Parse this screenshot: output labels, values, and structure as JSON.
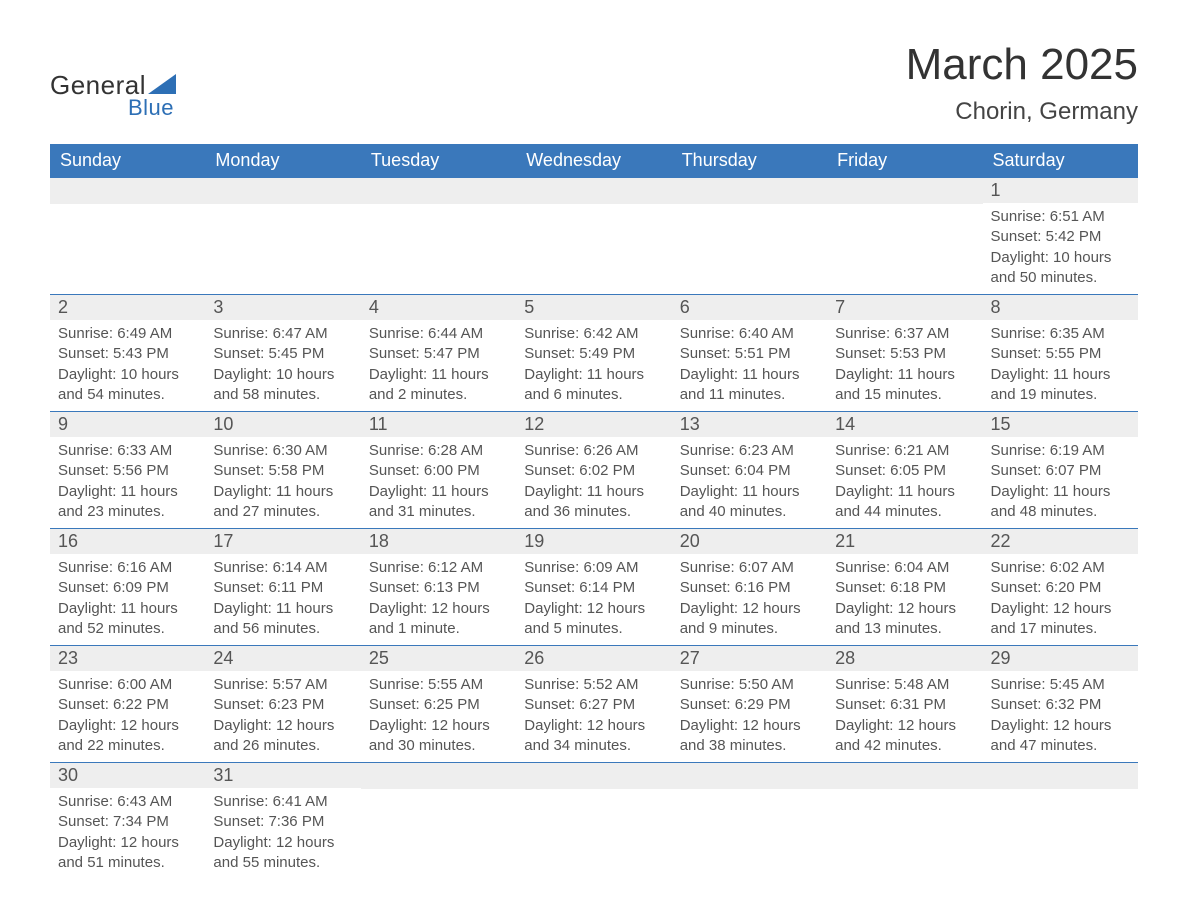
{
  "brand": {
    "general": "General",
    "blue": "Blue"
  },
  "title": "March 2025",
  "subtitle": "Chorin, Germany",
  "colors": {
    "header_bg": "#3a78bb",
    "header_text": "#ffffff",
    "daynum_bg": "#eeeeee",
    "text": "#555555",
    "logo_blue": "#2d6fb5"
  },
  "weekdays": [
    "Sunday",
    "Monday",
    "Tuesday",
    "Wednesday",
    "Thursday",
    "Friday",
    "Saturday"
  ],
  "leading_blanks": 6,
  "days": [
    {
      "n": "1",
      "sunrise": "Sunrise: 6:51 AM",
      "sunset": "Sunset: 5:42 PM",
      "day1": "Daylight: 10 hours",
      "day2": "and 50 minutes."
    },
    {
      "n": "2",
      "sunrise": "Sunrise: 6:49 AM",
      "sunset": "Sunset: 5:43 PM",
      "day1": "Daylight: 10 hours",
      "day2": "and 54 minutes."
    },
    {
      "n": "3",
      "sunrise": "Sunrise: 6:47 AM",
      "sunset": "Sunset: 5:45 PM",
      "day1": "Daylight: 10 hours",
      "day2": "and 58 minutes."
    },
    {
      "n": "4",
      "sunrise": "Sunrise: 6:44 AM",
      "sunset": "Sunset: 5:47 PM",
      "day1": "Daylight: 11 hours",
      "day2": "and 2 minutes."
    },
    {
      "n": "5",
      "sunrise": "Sunrise: 6:42 AM",
      "sunset": "Sunset: 5:49 PM",
      "day1": "Daylight: 11 hours",
      "day2": "and 6 minutes."
    },
    {
      "n": "6",
      "sunrise": "Sunrise: 6:40 AM",
      "sunset": "Sunset: 5:51 PM",
      "day1": "Daylight: 11 hours",
      "day2": "and 11 minutes."
    },
    {
      "n": "7",
      "sunrise": "Sunrise: 6:37 AM",
      "sunset": "Sunset: 5:53 PM",
      "day1": "Daylight: 11 hours",
      "day2": "and 15 minutes."
    },
    {
      "n": "8",
      "sunrise": "Sunrise: 6:35 AM",
      "sunset": "Sunset: 5:55 PM",
      "day1": "Daylight: 11 hours",
      "day2": "and 19 minutes."
    },
    {
      "n": "9",
      "sunrise": "Sunrise: 6:33 AM",
      "sunset": "Sunset: 5:56 PM",
      "day1": "Daylight: 11 hours",
      "day2": "and 23 minutes."
    },
    {
      "n": "10",
      "sunrise": "Sunrise: 6:30 AM",
      "sunset": "Sunset: 5:58 PM",
      "day1": "Daylight: 11 hours",
      "day2": "and 27 minutes."
    },
    {
      "n": "11",
      "sunrise": "Sunrise: 6:28 AM",
      "sunset": "Sunset: 6:00 PM",
      "day1": "Daylight: 11 hours",
      "day2": "and 31 minutes."
    },
    {
      "n": "12",
      "sunrise": "Sunrise: 6:26 AM",
      "sunset": "Sunset: 6:02 PM",
      "day1": "Daylight: 11 hours",
      "day2": "and 36 minutes."
    },
    {
      "n": "13",
      "sunrise": "Sunrise: 6:23 AM",
      "sunset": "Sunset: 6:04 PM",
      "day1": "Daylight: 11 hours",
      "day2": "and 40 minutes."
    },
    {
      "n": "14",
      "sunrise": "Sunrise: 6:21 AM",
      "sunset": "Sunset: 6:05 PM",
      "day1": "Daylight: 11 hours",
      "day2": "and 44 minutes."
    },
    {
      "n": "15",
      "sunrise": "Sunrise: 6:19 AM",
      "sunset": "Sunset: 6:07 PM",
      "day1": "Daylight: 11 hours",
      "day2": "and 48 minutes."
    },
    {
      "n": "16",
      "sunrise": "Sunrise: 6:16 AM",
      "sunset": "Sunset: 6:09 PM",
      "day1": "Daylight: 11 hours",
      "day2": "and 52 minutes."
    },
    {
      "n": "17",
      "sunrise": "Sunrise: 6:14 AM",
      "sunset": "Sunset: 6:11 PM",
      "day1": "Daylight: 11 hours",
      "day2": "and 56 minutes."
    },
    {
      "n": "18",
      "sunrise": "Sunrise: 6:12 AM",
      "sunset": "Sunset: 6:13 PM",
      "day1": "Daylight: 12 hours",
      "day2": "and 1 minute."
    },
    {
      "n": "19",
      "sunrise": "Sunrise: 6:09 AM",
      "sunset": "Sunset: 6:14 PM",
      "day1": "Daylight: 12 hours",
      "day2": "and 5 minutes."
    },
    {
      "n": "20",
      "sunrise": "Sunrise: 6:07 AM",
      "sunset": "Sunset: 6:16 PM",
      "day1": "Daylight: 12 hours",
      "day2": "and 9 minutes."
    },
    {
      "n": "21",
      "sunrise": "Sunrise: 6:04 AM",
      "sunset": "Sunset: 6:18 PM",
      "day1": "Daylight: 12 hours",
      "day2": "and 13 minutes."
    },
    {
      "n": "22",
      "sunrise": "Sunrise: 6:02 AM",
      "sunset": "Sunset: 6:20 PM",
      "day1": "Daylight: 12 hours",
      "day2": "and 17 minutes."
    },
    {
      "n": "23",
      "sunrise": "Sunrise: 6:00 AM",
      "sunset": "Sunset: 6:22 PM",
      "day1": "Daylight: 12 hours",
      "day2": "and 22 minutes."
    },
    {
      "n": "24",
      "sunrise": "Sunrise: 5:57 AM",
      "sunset": "Sunset: 6:23 PM",
      "day1": "Daylight: 12 hours",
      "day2": "and 26 minutes."
    },
    {
      "n": "25",
      "sunrise": "Sunrise: 5:55 AM",
      "sunset": "Sunset: 6:25 PM",
      "day1": "Daylight: 12 hours",
      "day2": "and 30 minutes."
    },
    {
      "n": "26",
      "sunrise": "Sunrise: 5:52 AM",
      "sunset": "Sunset: 6:27 PM",
      "day1": "Daylight: 12 hours",
      "day2": "and 34 minutes."
    },
    {
      "n": "27",
      "sunrise": "Sunrise: 5:50 AM",
      "sunset": "Sunset: 6:29 PM",
      "day1": "Daylight: 12 hours",
      "day2": "and 38 minutes."
    },
    {
      "n": "28",
      "sunrise": "Sunrise: 5:48 AM",
      "sunset": "Sunset: 6:31 PM",
      "day1": "Daylight: 12 hours",
      "day2": "and 42 minutes."
    },
    {
      "n": "29",
      "sunrise": "Sunrise: 5:45 AM",
      "sunset": "Sunset: 6:32 PM",
      "day1": "Daylight: 12 hours",
      "day2": "and 47 minutes."
    },
    {
      "n": "30",
      "sunrise": "Sunrise: 6:43 AM",
      "sunset": "Sunset: 7:34 PM",
      "day1": "Daylight: 12 hours",
      "day2": "and 51 minutes."
    },
    {
      "n": "31",
      "sunrise": "Sunrise: 6:41 AM",
      "sunset": "Sunset: 7:36 PM",
      "day1": "Daylight: 12 hours",
      "day2": "and 55 minutes."
    }
  ]
}
